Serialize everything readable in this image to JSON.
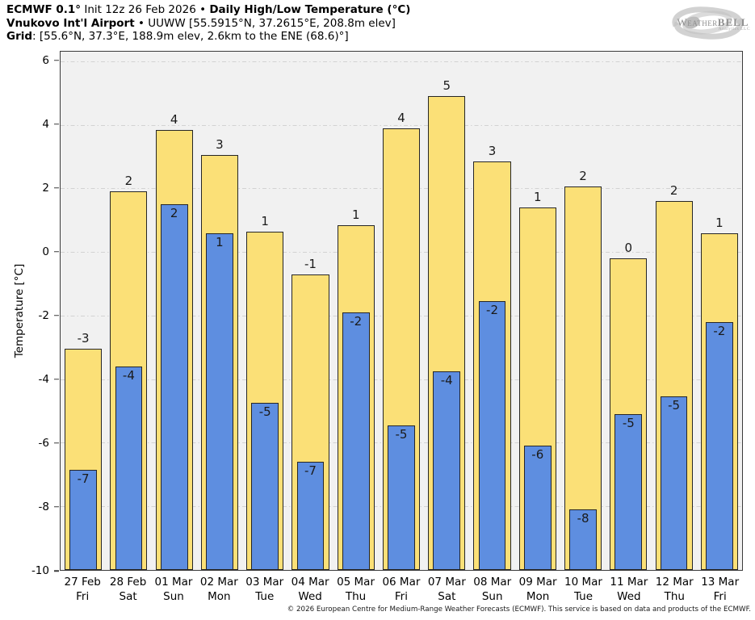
{
  "header": {
    "l1_bold1": "ECMWF 0.1°",
    "l1_normal": " Init 12z 26 Feb 2026 • ",
    "l1_bold2": "Daily High/Low Temperature (°C)",
    "l2_bold": "Vnukovo Int'l Airport",
    "l2_normal": " • UUWW [55.5915°N, 37.2615°E, 208.8m elev]",
    "l3_bold": "Grid",
    "l3_normal": ": [55.6°N, 37.3°E, 188.9m elev, 2.6km to the ENE (68.6)°]"
  },
  "logo": {
    "brand_part1": "Weather",
    "brand_part2": "BELL",
    "sub": "Analytics LLC"
  },
  "chart_data": {
    "type": "bar",
    "title": "Daily High/Low Temperature (°C)",
    "ylabel": "Temperature [°C]",
    "ylim": [
      -10,
      6.3
    ],
    "yticks": [
      6,
      4,
      2,
      0,
      -2,
      -4,
      -6,
      -8,
      -10
    ],
    "grid": "horizontal dash-dot lines at yticks, light gray, plot background #f1f1f1",
    "legend_position": "none",
    "categories": [
      {
        "date": "27 Feb",
        "day": "Fri"
      },
      {
        "date": "28 Feb",
        "day": "Sat"
      },
      {
        "date": "01 Mar",
        "day": "Sun"
      },
      {
        "date": "02 Mar",
        "day": "Mon"
      },
      {
        "date": "03 Mar",
        "day": "Tue"
      },
      {
        "date": "04 Mar",
        "day": "Wed"
      },
      {
        "date": "05 Mar",
        "day": "Thu"
      },
      {
        "date": "06 Mar",
        "day": "Fri"
      },
      {
        "date": "07 Mar",
        "day": "Sat"
      },
      {
        "date": "08 Mar",
        "day": "Sun"
      },
      {
        "date": "09 Mar",
        "day": "Mon"
      },
      {
        "date": "10 Mar",
        "day": "Tue"
      },
      {
        "date": "11 Mar",
        "day": "Wed"
      },
      {
        "date": "12 Mar",
        "day": "Thu"
      },
      {
        "date": "13 Mar",
        "day": "Fri"
      }
    ],
    "series": [
      {
        "name": "Daily High",
        "color": "#FBE077",
        "labels": [
          "-3",
          "2",
          "4",
          "3",
          "1",
          "-1",
          "1",
          "4",
          "5",
          "3",
          "1",
          "2",
          "0",
          "2",
          "1"
        ],
        "values": [
          -3.05,
          1.9,
          3.85,
          3.05,
          0.65,
          -0.7,
          0.85,
          3.9,
          4.9,
          2.85,
          1.4,
          2.05,
          -0.2,
          1.6,
          0.6
        ]
      },
      {
        "name": "Daily Low",
        "color": "#5E8EE0",
        "labels": [
          "-7",
          "-4",
          "2",
          "1",
          "-5",
          "-7",
          "-2",
          "-5",
          "-4",
          "-2",
          "-6",
          "-8",
          "-5",
          "-5",
          "-2"
        ],
        "values": [
          -6.85,
          -3.6,
          1.5,
          0.6,
          -4.75,
          -6.6,
          -1.9,
          -5.45,
          -3.75,
          -1.55,
          -6.1,
          -8.1,
          -5.1,
          -4.55,
          -2.2
        ]
      }
    ]
  },
  "footer": "© 2026 European Centre for Medium-Range Weather Forecasts (ECMWF). This service is based on data and products of the ECMWF."
}
